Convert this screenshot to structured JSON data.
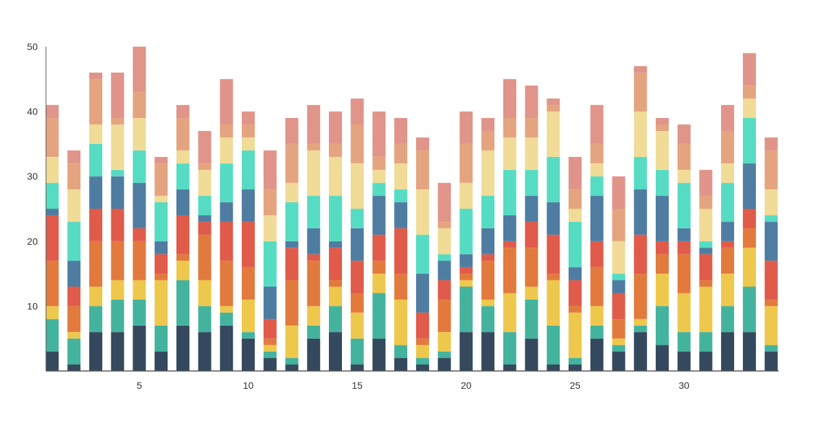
{
  "chart_data": {
    "type": "bar",
    "stacked": true,
    "title": "",
    "xlabel": "",
    "ylabel": "",
    "x": [
      1,
      2,
      3,
      4,
      5,
      6,
      7,
      8,
      9,
      10,
      11,
      12,
      13,
      14,
      15,
      16,
      17,
      18,
      19,
      20,
      21,
      22,
      23,
      24,
      25,
      26,
      27,
      28,
      29,
      30,
      31,
      32,
      33,
      34
    ],
    "xticks": [
      "5",
      "10",
      "15",
      "20",
      "25",
      "30"
    ],
    "xtick_values": [
      5,
      10,
      15,
      20,
      25,
      30
    ],
    "yticks": [
      "10",
      "20",
      "30",
      "40",
      "50"
    ],
    "ytick_values": [
      10,
      20,
      30,
      40,
      50
    ],
    "ylim": [
      0,
      50
    ],
    "grid": false,
    "legend": "none",
    "series": [
      {
        "color": "#34495e",
        "values": [
          3,
          1,
          6,
          6,
          7,
          3,
          7,
          6,
          7,
          5,
          2,
          1,
          5,
          6,
          1,
          5,
          2,
          1,
          2,
          6,
          6,
          1,
          5,
          1,
          1,
          5,
          3,
          6,
          4,
          3,
          3,
          6,
          6,
          3
        ]
      },
      {
        "color": "#44b39d",
        "values": [
          5,
          4,
          4,
          5,
          4,
          4,
          7,
          4,
          2,
          1,
          1,
          1,
          2,
          4,
          4,
          7,
          2,
          1,
          1,
          7,
          4,
          5,
          6,
          6,
          1,
          2,
          1,
          1,
          6,
          3,
          3,
          4,
          7,
          1
        ]
      },
      {
        "color": "#eec84c",
        "values": [
          2,
          1,
          3,
          3,
          3,
          7,
          3,
          4,
          1,
          5,
          1,
          5,
          3,
          3,
          4,
          3,
          7,
          2,
          3,
          1,
          1,
          6,
          2,
          7,
          7,
          3,
          1,
          1,
          5,
          6,
          7,
          5,
          6,
          6
        ]
      },
      {
        "color": "#e27a3e",
        "values": [
          7,
          4,
          7,
          6,
          6,
          1,
          1,
          7,
          7,
          5,
          1,
          7,
          7,
          1,
          3,
          2,
          4,
          1,
          5,
          1,
          6,
          7,
          6,
          1,
          1,
          6,
          3,
          7,
          3,
          6,
          1,
          4,
          3,
          1
        ]
      },
      {
        "color": "#e05b4a",
        "values": [
          7,
          3,
          5,
          5,
          2,
          3,
          6,
          2,
          6,
          7,
          3,
          5,
          1,
          5,
          5,
          4,
          7,
          4,
          3,
          1,
          1,
          1,
          4,
          6,
          4,
          4,
          4,
          6,
          2,
          2,
          4,
          1,
          3,
          6
        ]
      },
      {
        "color": "#4f7da2",
        "values": [
          1,
          4,
          5,
          5,
          7,
          2,
          4,
          1,
          3,
          5,
          5,
          1,
          4,
          1,
          5,
          6,
          4,
          6,
          3,
          2,
          4,
          4,
          4,
          5,
          2,
          7,
          2,
          7,
          7,
          2,
          1,
          3,
          7,
          6
        ]
      },
      {
        "color": "#56dcc3",
        "values": [
          4,
          6,
          5,
          1,
          5,
          6,
          4,
          3,
          6,
          6,
          7,
          6,
          5,
          7,
          3,
          2,
          2,
          6,
          1,
          7,
          5,
          7,
          4,
          7,
          7,
          3,
          1,
          5,
          4,
          7,
          1,
          6,
          7,
          1
        ]
      },
      {
        "color": "#f0db97",
        "values": [
          4,
          5,
          3,
          7,
          5,
          1,
          2,
          4,
          4,
          2,
          4,
          3,
          7,
          6,
          7,
          2,
          4,
          7,
          4,
          4,
          7,
          5,
          5,
          7,
          2,
          2,
          5,
          7,
          6,
          2,
          5,
          3,
          3,
          4
        ]
      },
      {
        "color": "#e4a47f",
        "values": [
          6,
          4,
          7,
          1,
          4,
          5,
          5,
          1,
          2,
          2,
          4,
          6,
          1,
          2,
          6,
          2,
          3,
          6,
          1,
          6,
          3,
          3,
          3,
          1,
          3,
          3,
          5,
          6,
          1,
          4,
          2,
          5,
          2,
          6
        ]
      },
      {
        "color": "#e0948a",
        "values": [
          2,
          2,
          1,
          7,
          7,
          1,
          2,
          5,
          7,
          2,
          6,
          4,
          6,
          5,
          4,
          7,
          4,
          2,
          6,
          5,
          2,
          6,
          5,
          1,
          5,
          6,
          5,
          1,
          1,
          3,
          4,
          4,
          5,
          2
        ]
      }
    ]
  }
}
